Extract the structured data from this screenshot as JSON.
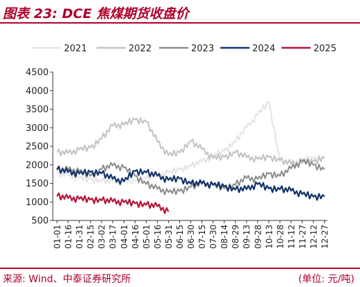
{
  "header": {
    "title": "图表 23:  DCE 焦煤期货收盘价"
  },
  "footer": {
    "source": "来源:    Wind、中泰证券研究所",
    "unit": "(单位: 元/吨)"
  },
  "chart_data": {
    "type": "line",
    "title": "",
    "xlabel": "",
    "ylabel": "",
    "ylim": [
      500,
      4500
    ],
    "yticks": [
      500,
      1000,
      1500,
      2000,
      2500,
      3000,
      3500,
      4000,
      4500
    ],
    "grid": false,
    "legend_position": "top",
    "x_categories": [
      "01-01",
      "01-16",
      "01-31",
      "02-15",
      "03-02",
      "03-17",
      "04-01",
      "04-16",
      "05-01",
      "05-16",
      "05-31",
      "06-15",
      "06-30",
      "07-15",
      "07-30",
      "08-14",
      "08-29",
      "09-13",
      "09-28",
      "10-13",
      "10-28",
      "11-12",
      "11-27",
      "12-12",
      "12-27"
    ],
    "series": [
      {
        "name": "2021",
        "color": "#e4e4e4",
        "width": 2,
        "values": [
          1760,
          1700,
          1640,
          1600,
          1560,
          1540,
          1540,
          1560,
          1640,
          1720,
          1790,
          1870,
          1960,
          2080,
          2230,
          2380,
          2620,
          3000,
          3350,
          3700,
          2100,
          2050,
          2120,
          2170,
          2210
        ]
      },
      {
        "name": "2022",
        "color": "#c2c2c2",
        "width": 2,
        "values": [
          2330,
          2310,
          2410,
          2460,
          2700,
          3050,
          3080,
          3220,
          3160,
          2620,
          2260,
          2330,
          2630,
          2420,
          2180,
          2210,
          2330,
          2200,
          2150,
          2210,
          2120,
          2020,
          2040,
          2090,
          2180
        ]
      },
      {
        "name": "2023",
        "color": "#8c8c8c",
        "width": 2,
        "values": [
          1850,
          1870,
          1830,
          1700,
          1880,
          1980,
          1920,
          1700,
          1480,
          1350,
          1260,
          1290,
          1400,
          1480,
          1450,
          1360,
          1460,
          1640,
          1610,
          1760,
          1700,
          1900,
          2100,
          2000,
          1870
        ]
      },
      {
        "name": "2024",
        "color": "#13326a",
        "width": 2.2,
        "values": [
          1880,
          1800,
          1760,
          1800,
          1770,
          1620,
          1550,
          1830,
          1790,
          1700,
          1590,
          1630,
          1490,
          1500,
          1460,
          1420,
          1330,
          1340,
          1480,
          1360,
          1340,
          1300,
          1210,
          1140,
          1150
        ]
      },
      {
        "name": "2025",
        "color": "#b5163a",
        "width": 2.2,
        "values": [
          1150,
          1100,
          1080,
          1060,
          1040,
          1010,
          990,
          960,
          920,
          880,
          740,
          null,
          null,
          null,
          null,
          null,
          null,
          null,
          null,
          null,
          null,
          null,
          null,
          null,
          null
        ]
      }
    ]
  }
}
